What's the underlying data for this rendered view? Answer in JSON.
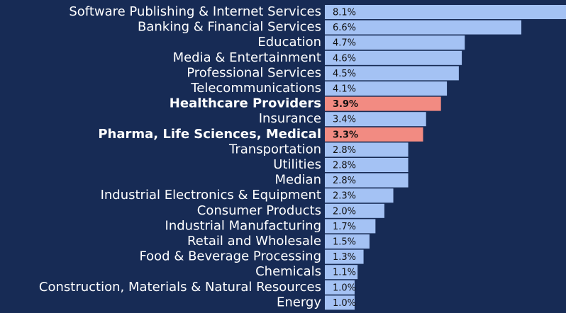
{
  "chart_data": {
    "type": "bar",
    "orientation": "horizontal",
    "categories": [
      "Software Publishing & Internet Services",
      "Banking & Financial Services",
      "Education",
      "Media & Entertainment",
      "Professional Services",
      "Telecommunications",
      "Healthcare Providers",
      "Insurance",
      "Pharma, Life Sciences, Medical",
      "Transportation",
      "Utilities",
      "Median",
      "Industrial Electronics & Equipment",
      "Consumer Products",
      "Industrial Manufacturing",
      "Retail and Wholesale",
      "Food & Beverage Processing",
      "Chemicals",
      "Construction, Materials & Natural Resources",
      "Energy"
    ],
    "values": [
      8.1,
      6.6,
      4.7,
      4.6,
      4.5,
      4.1,
      3.9,
      3.4,
      3.3,
      2.8,
      2.8,
      2.8,
      2.3,
      2.0,
      1.7,
      1.5,
      1.3,
      1.1,
      1.0,
      1.0
    ],
    "value_labels": [
      "8.1%",
      "6.6%",
      "4.7%",
      "4.6%",
      "4.5%",
      "4.1%",
      "3.9%",
      "3.4%",
      "3.3%",
      "2.8%",
      "2.8%",
      "2.8%",
      "2.3%",
      "2.0%",
      "1.7%",
      "1.5%",
      "1.3%",
      "1.1%",
      "1.0%",
      "1.0%"
    ],
    "color": "#a4c2f4",
    "colors": [
      "#a4c2f4",
      "#a4c2f4",
      "#a4c2f4",
      "#a4c2f4",
      "#a4c2f4",
      "#a4c2f4",
      "#f28b82",
      "#a4c2f4",
      "#f28b82",
      "#a4c2f4",
      "#a4c2f4",
      "#a4c2f4",
      "#a4c2f4",
      "#a4c2f4",
      "#a4c2f4",
      "#a4c2f4",
      "#a4c2f4",
      "#a4c2f4",
      "#a4c2f4",
      "#a4c2f4"
    ]
  }
}
